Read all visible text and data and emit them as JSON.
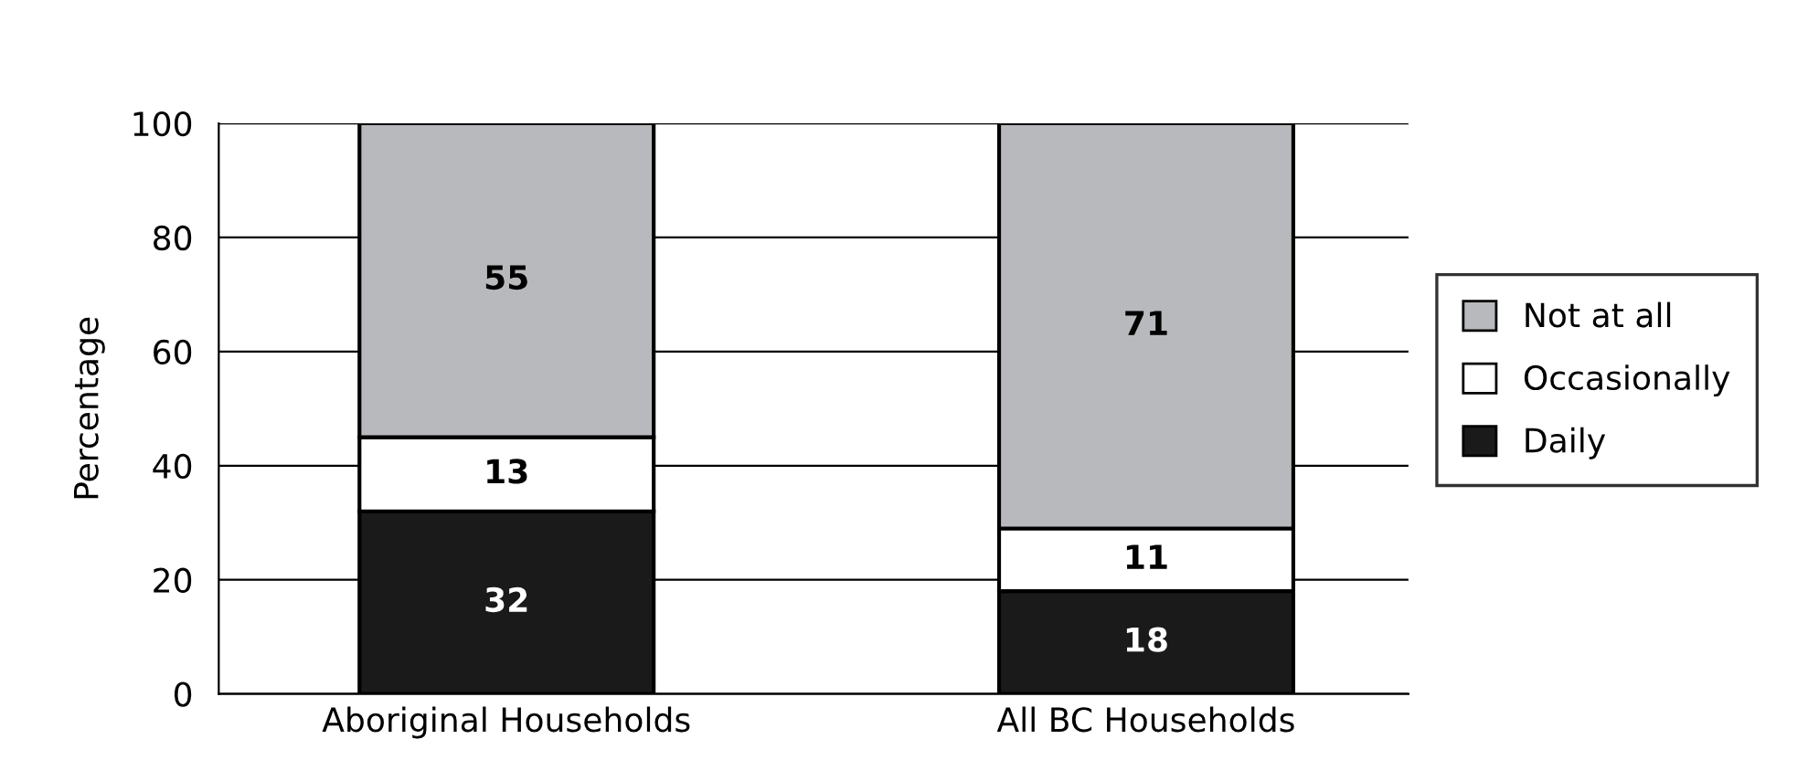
{
  "chart_data": {
    "type": "bar",
    "stacked": true,
    "ylabel": "Percentage",
    "categories": [
      "Aboriginal Households",
      "All BC Households"
    ],
    "series": [
      {
        "name": "Daily",
        "color": "#1a1a1a",
        "values": [
          32,
          18
        ]
      },
      {
        "name": "Occasionally",
        "color": "#ffffff",
        "values": [
          13,
          11
        ]
      },
      {
        "name": "Not at all",
        "color": "#b8b9bc",
        "values": [
          55,
          71
        ]
      }
    ],
    "ylim": [
      0,
      100
    ],
    "yticks": [
      0,
      20,
      40,
      60,
      80,
      100
    ],
    "grid": "y",
    "legend": "right",
    "data_labels": true
  }
}
